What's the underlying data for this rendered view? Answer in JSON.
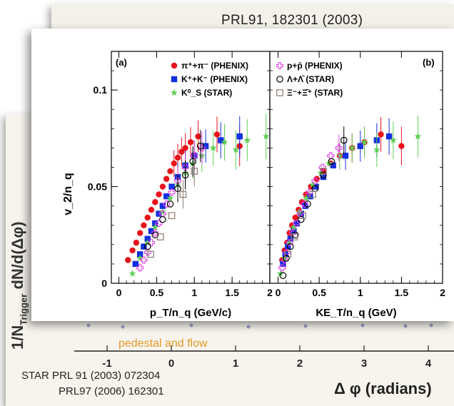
{
  "back_slide": {
    "ref": "PRL91, 182301 (2003)"
  },
  "mid_slide": {
    "ylabel_main": "1/N",
    "ylabel_sub": "Trigger",
    "ylabel_rest": "dN/d(Δφ)",
    "annotation": "pedestal and flow",
    "x_ticks": [
      "-1",
      "0",
      "1",
      "2",
      "3",
      "4"
    ],
    "xlabel": "Δ φ (radians)",
    "ref1": "STAR PRL 91 (2003) 072304",
    "ref2": "PRL97 (2006)  162301"
  },
  "colors": {
    "phenix_pi": "#e8121b",
    "phenix_k": "#1130e0",
    "star_k0": "#5fcf56",
    "phenix_p": "#e040e8",
    "star_lambda": "#000000",
    "star_xi": "#8a7a70"
  },
  "chart_data": [
    {
      "panel_label": "(a)",
      "type": "scatter",
      "xlabel": "p_T/n_q (GeV/c)",
      "ylabel": "v_2/n_q",
      "xlim": [
        -0.1,
        2.0
      ],
      "ylim": [
        0,
        0.12
      ],
      "x_ticks": [
        "0",
        "0.5",
        "1",
        "1.5",
        "2"
      ],
      "y_ticks": [
        "0",
        "0.05",
        "0.1"
      ],
      "series": [
        {
          "name": "π⁺+π⁻ (PHENIX)",
          "marker": "circle-filled",
          "color": "#e8121b",
          "x": [
            0.12,
            0.18,
            0.23,
            0.28,
            0.33,
            0.38,
            0.43,
            0.48,
            0.53,
            0.58,
            0.63,
            0.68,
            0.73,
            0.78,
            0.83,
            0.88,
            0.95,
            1.05,
            1.3,
            1.6
          ],
          "y": [
            0.012,
            0.017,
            0.021,
            0.026,
            0.03,
            0.034,
            0.038,
            0.042,
            0.046,
            0.05,
            0.054,
            0.058,
            0.062,
            0.065,
            0.068,
            0.07,
            0.073,
            0.076,
            0.077,
            0.071
          ]
        },
        {
          "name": "K⁺+K⁻ (PHENIX)",
          "marker": "square-filled",
          "color": "#1130e0",
          "x": [
            0.22,
            0.28,
            0.33,
            0.38,
            0.43,
            0.48,
            0.53,
            0.58,
            0.63,
            0.7,
            0.78,
            0.88,
            1.0,
            1.15,
            1.35,
            1.6
          ],
          "y": [
            0.01,
            0.015,
            0.019,
            0.023,
            0.027,
            0.031,
            0.036,
            0.04,
            0.045,
            0.05,
            0.055,
            0.061,
            0.066,
            0.071,
            0.074,
            0.076
          ]
        },
        {
          "name": "K⁰_S (STAR)",
          "marker": "star",
          "color": "#5fcf56",
          "x": [
            0.18,
            0.28,
            0.38,
            0.48,
            0.58,
            0.68,
            0.78,
            0.88,
            0.98,
            1.1,
            1.25,
            1.4,
            1.55,
            1.7,
            1.95
          ],
          "y": [
            0.005,
            0.013,
            0.021,
            0.029,
            0.037,
            0.044,
            0.051,
            0.057,
            0.062,
            0.066,
            0.07,
            0.073,
            0.069,
            0.074,
            0.076
          ]
        },
        {
          "name": "p+p̄ (PHENIX)",
          "marker": "cross-open",
          "color": "#e040e8",
          "x": [
            0.28,
            0.33,
            0.38,
            0.43,
            0.48,
            0.53,
            0.58,
            0.63,
            0.7,
            0.78,
            0.88,
            1.0,
            1.1
          ],
          "y": [
            0.008,
            0.012,
            0.016,
            0.021,
            0.026,
            0.031,
            0.036,
            0.041,
            0.047,
            0.053,
            0.06,
            0.066,
            0.07
          ]
        },
        {
          "name": "Λ+Λ̄ (STAR)",
          "marker": "circle-open",
          "color": "#000000",
          "x": [
            0.38,
            0.48,
            0.58,
            0.68,
            0.78,
            0.88,
            0.98,
            1.08
          ],
          "y": [
            0.019,
            0.025,
            0.033,
            0.041,
            0.049,
            0.056,
            0.063,
            0.071
          ]
        },
        {
          "name": "Ξ⁻+Ξ̄⁺ (STAR)",
          "marker": "square-open",
          "color": "#8a7a70",
          "x": [
            0.42,
            0.55,
            0.7,
            0.85,
            1.0
          ],
          "y": [
            0.015,
            0.024,
            0.035,
            0.046,
            0.058
          ]
        }
      ]
    },
    {
      "panel_label": "(b)",
      "type": "scatter",
      "xlabel": "KE_T/n_q (GeV)",
      "ylabel": "",
      "xlim": [
        -0.1,
        2.0
      ],
      "ylim": [
        0,
        0.12
      ],
      "x_ticks": [
        "0",
        "0.5",
        "1",
        "1.5",
        "2"
      ],
      "series": [
        {
          "name": "π⁺+π⁻ (PHENIX)",
          "marker": "circle-filled",
          "color": "#e8121b",
          "x": [
            0.05,
            0.08,
            0.11,
            0.14,
            0.17,
            0.21,
            0.25,
            0.29,
            0.34,
            0.4,
            0.47,
            0.55,
            0.64,
            0.75,
            0.9,
            1.05,
            1.25,
            1.5
          ],
          "y": [
            0.012,
            0.017,
            0.021,
            0.026,
            0.03,
            0.034,
            0.038,
            0.042,
            0.046,
            0.05,
            0.054,
            0.058,
            0.062,
            0.066,
            0.07,
            0.073,
            0.077,
            0.071
          ]
        },
        {
          "name": "K⁺+K⁻ (PHENIX)",
          "marker": "square-filled",
          "color": "#1130e0",
          "x": [
            0.06,
            0.09,
            0.12,
            0.15,
            0.19,
            0.23,
            0.28,
            0.33,
            0.39,
            0.46,
            0.55,
            0.67,
            0.82,
            1.0,
            1.2,
            1.35
          ],
          "y": [
            0.01,
            0.015,
            0.019,
            0.023,
            0.027,
            0.031,
            0.036,
            0.04,
            0.045,
            0.05,
            0.055,
            0.061,
            0.066,
            0.071,
            0.074,
            0.076
          ]
        },
        {
          "name": "K⁰_S (STAR)",
          "marker": "star",
          "color": "#5fcf56",
          "x": [
            0.03,
            0.08,
            0.13,
            0.19,
            0.26,
            0.34,
            0.42,
            0.52,
            0.62,
            0.75,
            0.9,
            1.05,
            1.2,
            1.4,
            1.7
          ],
          "y": [
            0.005,
            0.013,
            0.021,
            0.029,
            0.037,
            0.044,
            0.051,
            0.057,
            0.062,
            0.066,
            0.07,
            0.073,
            0.069,
            0.074,
            0.076
          ]
        },
        {
          "name": "p+p̄ (PHENIX)",
          "marker": "cross-open",
          "color": "#e040e8",
          "x": [
            0.05,
            0.08,
            0.11,
            0.14,
            0.18,
            0.22,
            0.27,
            0.32,
            0.38,
            0.45,
            0.54,
            0.64,
            0.74
          ],
          "y": [
            0.008,
            0.012,
            0.016,
            0.021,
            0.026,
            0.031,
            0.036,
            0.041,
            0.047,
            0.053,
            0.06,
            0.066,
            0.07
          ]
        },
        {
          "name": "Λ+Λ̄ (STAR)",
          "marker": "circle-open",
          "color": "#000000",
          "x": [
            0.06,
            0.1,
            0.15,
            0.21,
            0.28,
            0.36,
            0.45,
            0.55,
            0.65,
            0.8
          ],
          "y": [
            0.004,
            0.013,
            0.019,
            0.025,
            0.033,
            0.041,
            0.049,
            0.056,
            0.063,
            0.074
          ]
        },
        {
          "name": "Ξ⁻+Ξ̄⁺ (STAR)",
          "marker": "square-open",
          "color": "#8a7a70",
          "x": [
            0.12,
            0.2,
            0.3,
            0.42,
            0.55
          ],
          "y": [
            0.015,
            0.024,
            0.035,
            0.046,
            0.058
          ]
        }
      ]
    }
  ]
}
